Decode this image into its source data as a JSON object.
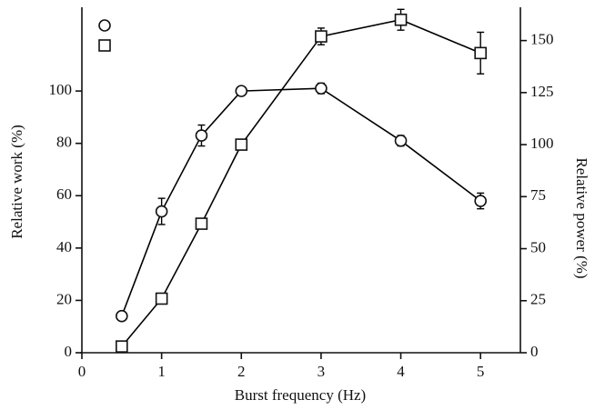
{
  "chart_data": {
    "type": "line",
    "xlabel": "Burst frequency (Hz)",
    "ylabel": "Relative work (%)",
    "y2label": "Relative power (%)",
    "x": [
      0.5,
      1,
      1.5,
      2,
      3,
      4,
      5
    ],
    "series": [
      {
        "color": "#000000",
        "marker": "circle",
        "axis": "y",
        "values": [
          14,
          54,
          83,
          100,
          101,
          81,
          58
        ],
        "errors": [
          0,
          5,
          4,
          0,
          2,
          2,
          3
        ]
      },
      {
        "color": "#000000",
        "marker": "square",
        "axis": "y2",
        "values": [
          3,
          26,
          62,
          100,
          152,
          160,
          144
        ],
        "errors": [
          0,
          0,
          0,
          0,
          4,
          5,
          10
        ]
      }
    ],
    "xlim": [
      0,
      5.5
    ],
    "xticks": [
      0,
      1,
      2,
      3,
      4,
      5
    ],
    "ylim": [
      0,
      132
    ],
    "yticks": [
      0,
      20,
      40,
      60,
      80,
      100
    ],
    "y2lim": [
      0,
      166
    ],
    "y2ticks": [
      0,
      25,
      50,
      75,
      100,
      125,
      150
    ],
    "legend": "upper left",
    "grid": false
  }
}
